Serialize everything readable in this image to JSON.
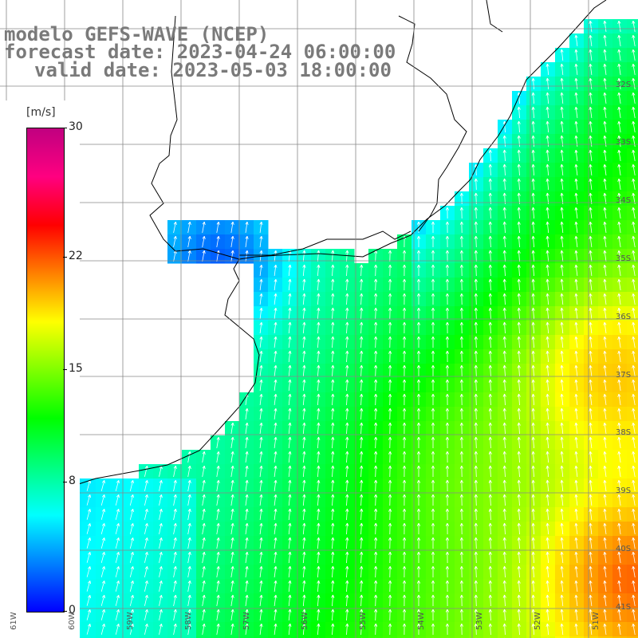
{
  "title": {
    "line1": "modelo GEFS-WAVE (NCEP)",
    "line2": "forecast date: 2023-04-24 06:00:00",
    "line3": "valid date: 2023-05-03 18:00:00"
  },
  "colorbar": {
    "unit": "[m/s]",
    "ticks": [
      {
        "label": "30",
        "value": 30
      },
      {
        "label": "22",
        "value": 22
      },
      {
        "label": "15",
        "value": 15
      },
      {
        "label": "8",
        "value": 8
      },
      {
        "label": "0",
        "value": 0
      }
    ],
    "colors": [
      "#0000ff",
      "#0080ff",
      "#00ffff",
      "#00ff80",
      "#00ff00",
      "#80ff00",
      "#ffff00",
      "#ff8000",
      "#ff0000",
      "#ff0080",
      "#c00080"
    ]
  },
  "lat_labels": [
    "32S",
    "33S",
    "34S",
    "35S",
    "36S",
    "37S",
    "38S",
    "39S",
    "40S",
    "41S"
  ],
  "lon_labels": [
    "61W",
    "60W",
    "59W",
    "58W",
    "57W",
    "56W",
    "55W",
    "54W",
    "53W",
    "52W",
    "51W"
  ],
  "colors": {
    "land": "#ffffff",
    "coast": "#000000",
    "grid": "#888888",
    "arrow": "#ffffff",
    "title": "#7a7a7a"
  }
}
